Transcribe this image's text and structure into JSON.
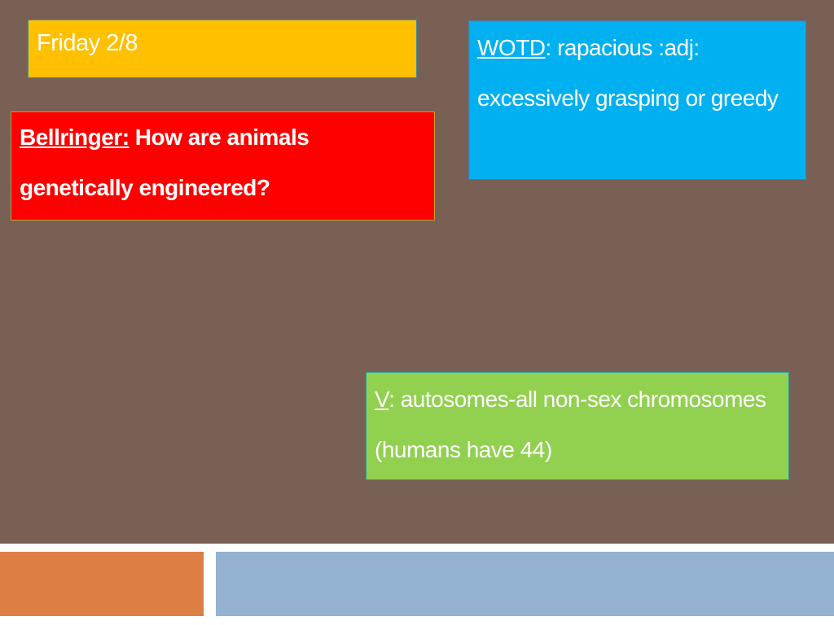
{
  "date": {
    "text": "Friday 2/8"
  },
  "bellringer": {
    "label": "Bellringer:",
    "text": " How are animals genetically engineered?"
  },
  "wotd": {
    "label": "WOTD",
    "text": ": rapacious :adj: excessively grasping or greedy"
  },
  "vocab": {
    "label": "V",
    "text": ": autosomes-all non-sex chromosomes (humans have 44)"
  }
}
